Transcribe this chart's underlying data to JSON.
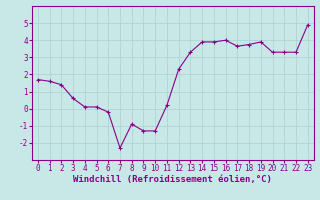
{
  "x": [
    0,
    1,
    2,
    3,
    4,
    5,
    6,
    7,
    8,
    9,
    10,
    11,
    12,
    13,
    14,
    15,
    16,
    17,
    18,
    19,
    20,
    21,
    22,
    23
  ],
  "y": [
    1.7,
    1.6,
    1.4,
    0.6,
    0.1,
    0.1,
    -0.2,
    -2.3,
    -0.9,
    -1.3,
    -1.3,
    0.2,
    2.3,
    3.3,
    3.9,
    3.9,
    4.0,
    3.65,
    3.75,
    3.9,
    3.3,
    3.3,
    3.3,
    4.9
  ],
  "line_color": "#880088",
  "marker_color": "#880088",
  "bg_color": "#c8e8e8",
  "grid_color": "#aad0d0",
  "xlabel": "Windchill (Refroidissement éolien,°C)",
  "xlabel_color": "#880088",
  "axis_line_color": "#880088",
  "ylim": [
    -3,
    6
  ],
  "xlim": [
    -0.5,
    23.5
  ],
  "yticks": [
    -2,
    -1,
    0,
    1,
    2,
    3,
    4,
    5
  ],
  "xticks": [
    0,
    1,
    2,
    3,
    4,
    5,
    6,
    7,
    8,
    9,
    10,
    11,
    12,
    13,
    14,
    15,
    16,
    17,
    18,
    19,
    20,
    21,
    22,
    23
  ],
  "tick_label_color": "#880088",
  "tick_fontsize": 5.5,
  "xlabel_fontsize": 6.5
}
